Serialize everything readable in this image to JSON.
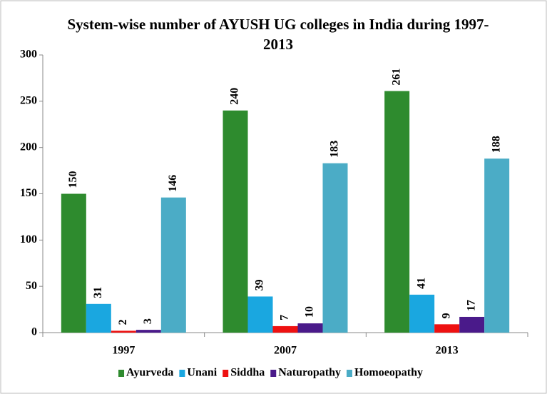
{
  "chart_data": {
    "type": "bar",
    "title": "System-wise number of AYUSH UG colleges in India during 1997-2013",
    "categories": [
      "1997",
      "2007",
      "2013"
    ],
    "series": [
      {
        "name": "Ayurveda",
        "color": "#2e8b2e",
        "values": [
          150,
          240,
          261
        ]
      },
      {
        "name": "Unani",
        "color": "#1aa7e0",
        "values": [
          31,
          39,
          41
        ]
      },
      {
        "name": "Siddha",
        "color": "#ee1111",
        "values": [
          2,
          7,
          9
        ]
      },
      {
        "name": "Naturopathy",
        "color": "#4a1a8a",
        "values": [
          3,
          10,
          17
        ]
      },
      {
        "name": "Homoeopathy",
        "color": "#4bacc6",
        "values": [
          146,
          183,
          188
        ]
      }
    ],
    "ylim": [
      0,
      300
    ],
    "yticks": [
      0,
      50,
      100,
      150,
      200,
      250,
      300
    ],
    "grid": false,
    "legend": "bottom"
  }
}
